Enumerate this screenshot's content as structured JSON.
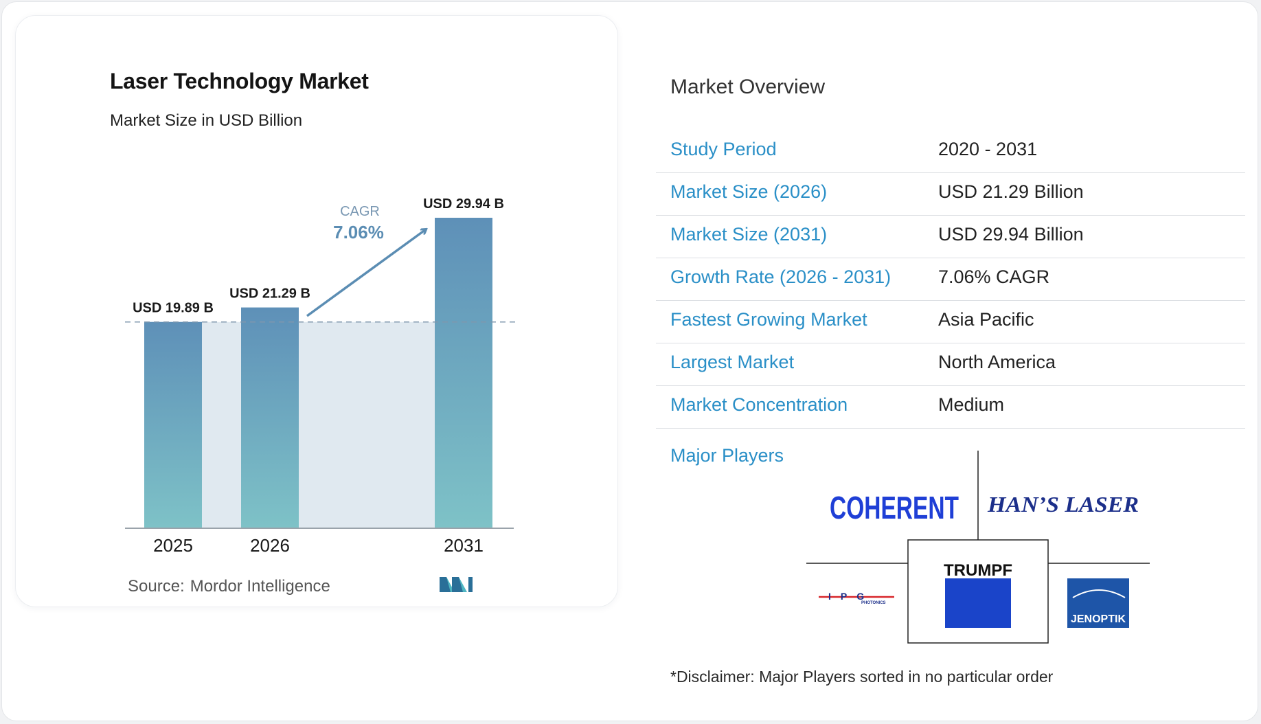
{
  "chart_data": {
    "type": "bar",
    "title": "Laser Technology Market",
    "subtitle": "Market Size in USD Billion",
    "categories": [
      "2025",
      "2026",
      "2031"
    ],
    "values": [
      19.89,
      21.29,
      29.94
    ],
    "value_labels": [
      "USD 19.89 B",
      "USD 21.29 B",
      "USD 29.94 B"
    ],
    "cagr_label": "CAGR",
    "cagr_value": "7.06%",
    "source_label": "Source:",
    "source_name": "Mordor Intelligence",
    "ylim": [
      0,
      32
    ],
    "grid": false
  },
  "colors": {
    "bar_top": "#5e90b8",
    "bar_bottom": "#7ec2c7",
    "band": "#e0e9f0",
    "accent": "#2a8fc7",
    "arrow": "#5b8db3"
  },
  "overview": {
    "title": "Market Overview",
    "rows": [
      {
        "label": "Study Period",
        "value": "2020 - 2031"
      },
      {
        "label": "Market Size (2026)",
        "value": "USD 21.29 Billion"
      },
      {
        "label": "Market Size (2031)",
        "value": "USD 29.94 Billion"
      },
      {
        "label": "Growth Rate (2026 - 2031)",
        "value": "7.06% CAGR"
      },
      {
        "label": "Fastest Growing Market",
        "value": "Asia Pacific"
      },
      {
        "label": "Largest Market",
        "value": "North America"
      },
      {
        "label": "Market Concentration",
        "value": "Medium"
      }
    ]
  },
  "players": {
    "title": "Major Players",
    "logos": {
      "coherent": "COHERENT",
      "hans": "HAN’S LASER",
      "ipg": "IPG",
      "ipg_sub": "PHOTONICS",
      "trumpf": "TRUMPF",
      "jenoptik": "JENOPTIK"
    },
    "disclaimer": "*Disclaimer: Major Players sorted in no particular order"
  }
}
